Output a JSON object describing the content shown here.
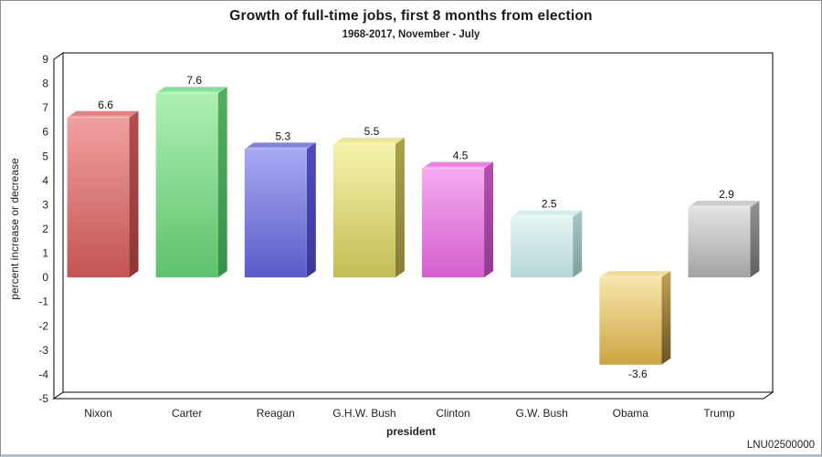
{
  "chart": {
    "title": "Growth of full-time jobs, first 8 months from election",
    "subtitle": "1968-2017, November - July",
    "xlabel": "president",
    "ylabel": "percent increase or decrease",
    "watermark": "LNU02500000"
  },
  "chart_data": {
    "type": "bar",
    "style": "3d-extruded",
    "title": "Growth of full-time jobs, first 8 months from election",
    "subtitle": "1968-2017, November - July",
    "xlabel": "president",
    "ylabel": "percent increase or decrease",
    "categories": [
      "Nixon",
      "Carter",
      "Reagan",
      "G.H.W. Bush",
      "Clinton",
      "G.W. Bush",
      "Obama",
      "Trump"
    ],
    "values": [
      6.6,
      7.6,
      5.3,
      5.5,
      4.5,
      2.5,
      -3.6,
      2.9
    ],
    "value_label_format": "one-decimal",
    "ylim": [
      -5,
      9
    ],
    "ytick_step": 1,
    "grid": false,
    "legend": false,
    "watermark": "LNU02500000",
    "bar_colors": [
      {
        "name": "red",
        "front_light": "#f2a0a0",
        "front_dark": "#c25454",
        "top_base": "#e87f7f",
        "top_light": "#f7b9b9",
        "side_light": "#b54d4d",
        "side_dark": "#8c3737"
      },
      {
        "name": "green",
        "front_light": "#adf0b2",
        "front_dark": "#5ec26d",
        "top_base": "#83e291",
        "top_light": "#cdf6cf",
        "side_light": "#50b061",
        "side_dark": "#37904a"
      },
      {
        "name": "blue",
        "front_light": "#a8a8f2",
        "front_dark": "#5b5bc9",
        "top_base": "#8181e3",
        "top_light": "#c3c3f7",
        "side_light": "#4d4dbb",
        "side_dark": "#393999"
      },
      {
        "name": "yellow",
        "front_light": "#f5f3ab",
        "front_dark": "#c4bc55",
        "top_base": "#ece790",
        "top_light": "#f9f7cd",
        "side_light": "#aba24b",
        "side_dark": "#857e38"
      },
      {
        "name": "magenta",
        "front_light": "#f5abf1",
        "front_dark": "#d55ece",
        "top_base": "#ee7de7",
        "top_light": "#f9c8f5",
        "side_light": "#b350af",
        "side_dark": "#903b8d"
      },
      {
        "name": "cyan",
        "front_light": "#e4f5f3",
        "front_dark": "#b4d6d6",
        "top_base": "#d3efed",
        "top_light": "#f0fbfa",
        "side_light": "#a4c8c6",
        "side_dark": "#7f9e9c"
      },
      {
        "name": "gold",
        "front_light": "#f7e6ab",
        "front_dark": "#cda443",
        "top_base": "#f1dd97",
        "top_light": "#f9efc9",
        "side_light": "#c1a150",
        "side_dark": "#6b5323"
      },
      {
        "name": "silver",
        "front_light": "#e3e3e3",
        "front_dark": "#a3a3a3",
        "top_base": "#cccccc",
        "top_light": "#eeeeee",
        "side_light": "#949494",
        "side_dark": "#5f5f5f"
      }
    ]
  }
}
